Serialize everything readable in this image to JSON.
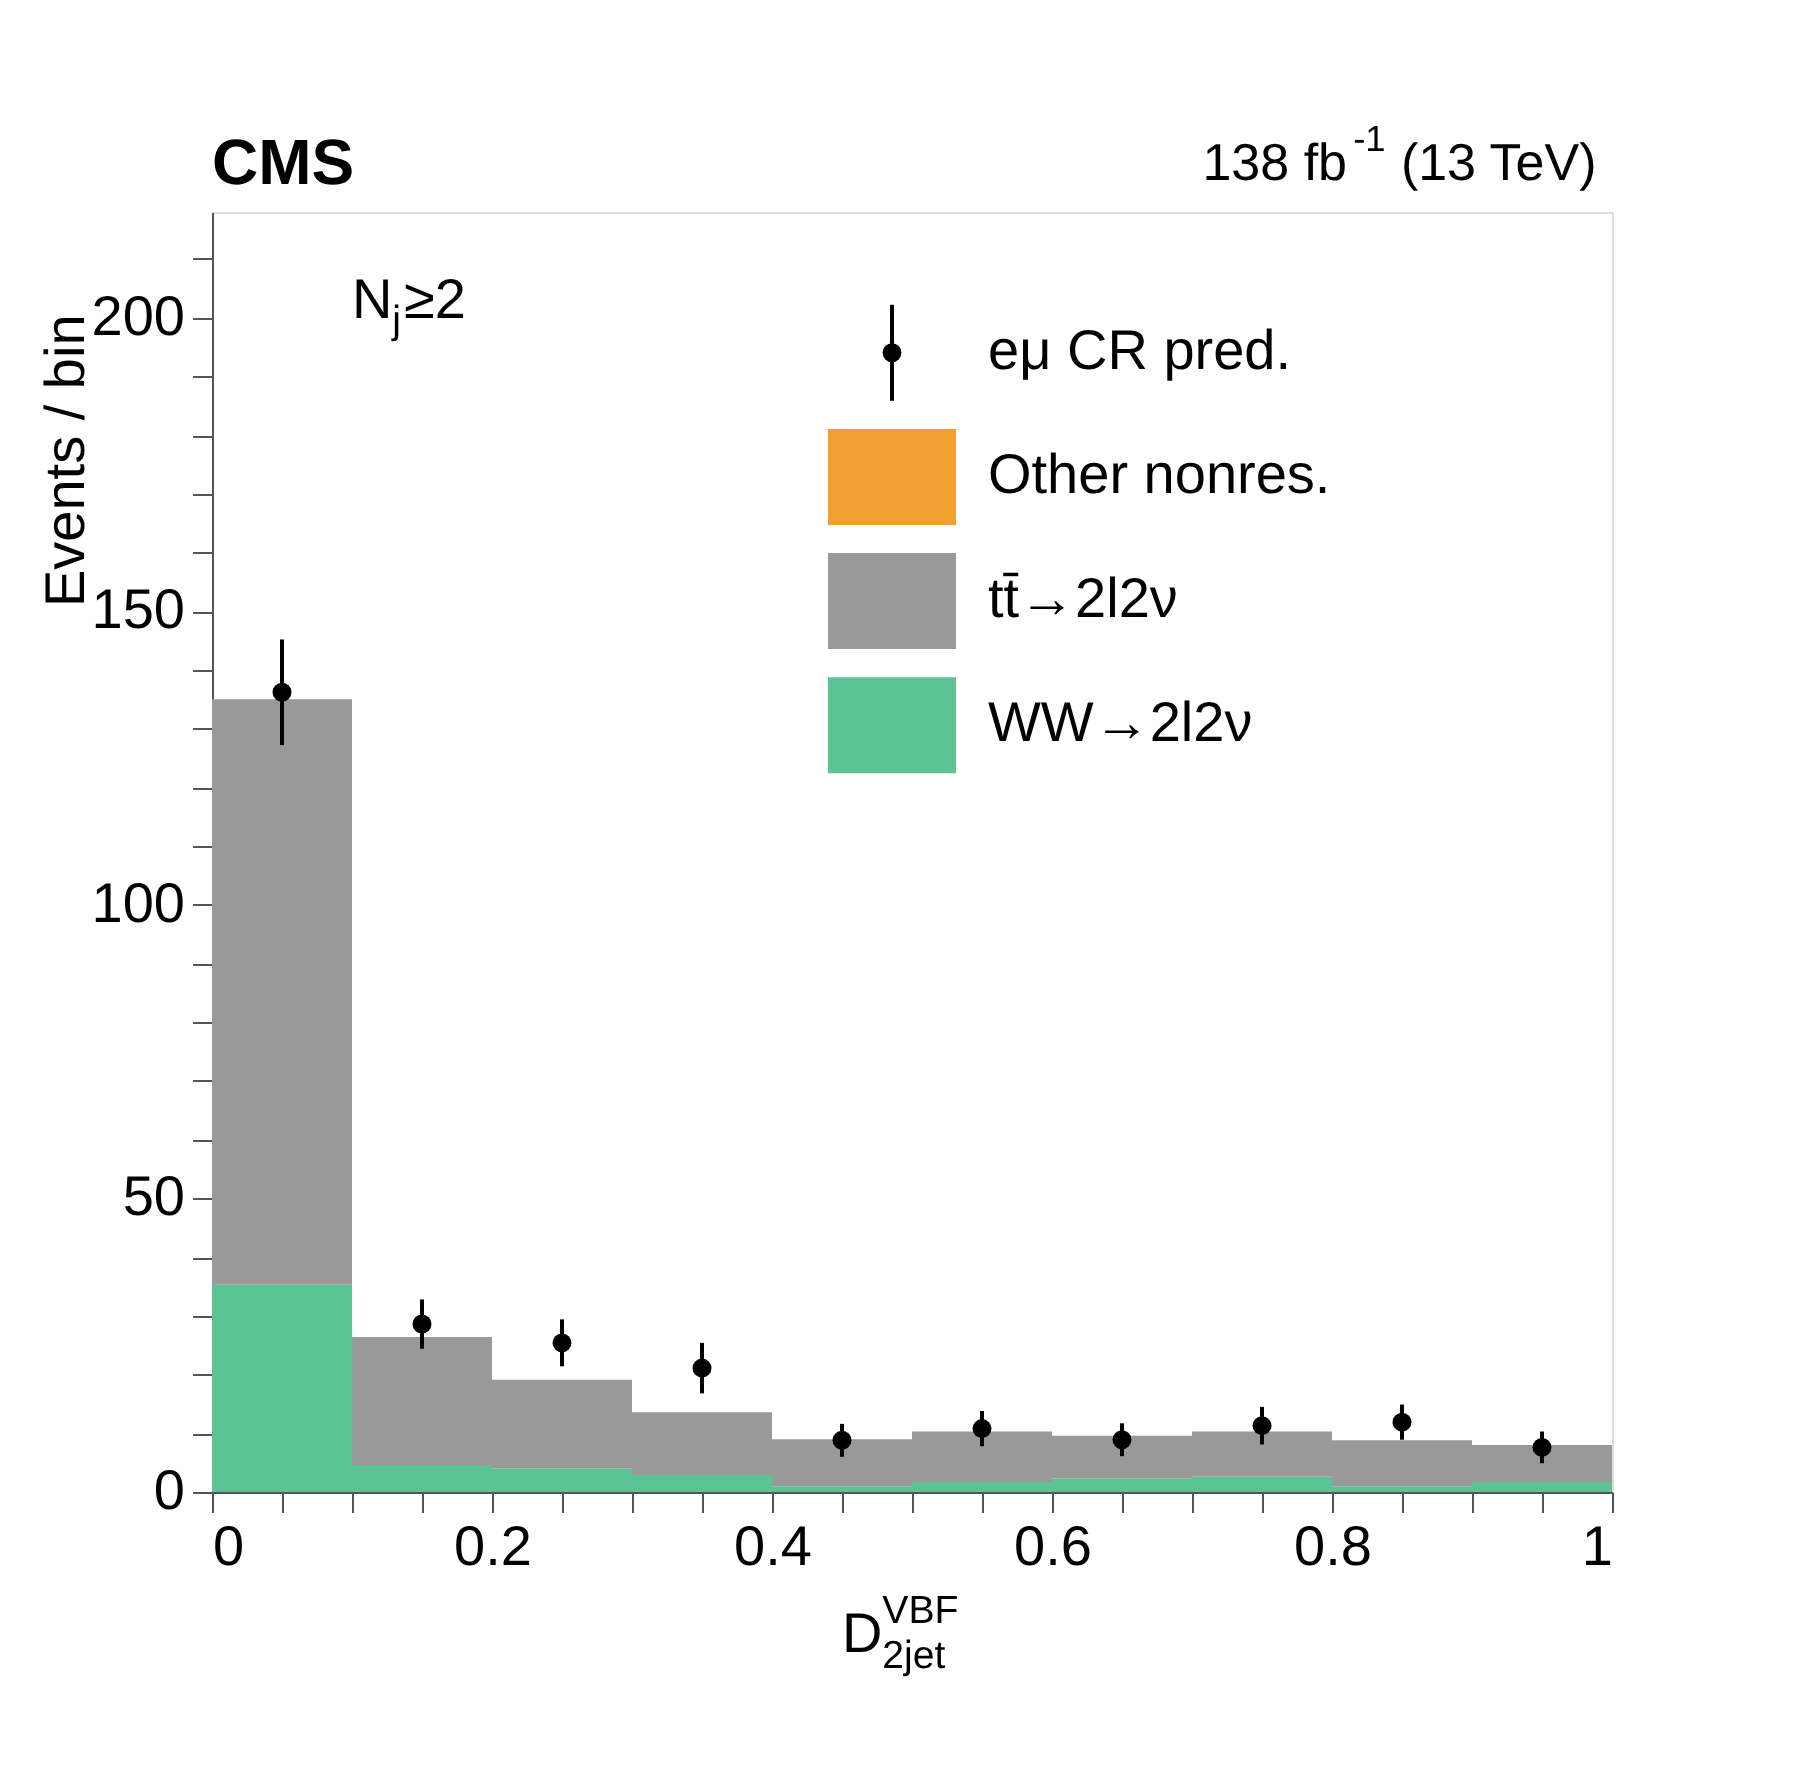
{
  "chart_data": {
    "type": "bar",
    "title": "CMS",
    "subtitle": "138 fb$^{-1}$ (13 TeV)",
    "xlabel": "D$^{VBF}$$_{2jet}$",
    "ylabel": "Events / bin",
    "annotations": [
      "N$_{j}$≥2"
    ],
    "x": [
      0.05,
      0.15,
      0.25,
      0.35,
      0.45,
      0.55,
      0.65,
      0.75,
      0.85,
      0.95
    ],
    "stacked": true,
    "series": [
      {
        "name": "WW→2l2ν",
        "color": "#5cc394",
        "values": [
          35.3,
          4.6,
          4.0,
          2.9,
          1.0,
          1.7,
          2.3,
          2.6,
          1.0,
          1.7
        ]
      },
      {
        "name": "tt̄→2l2ν",
        "color": "#999999",
        "values": [
          99.7,
          21.8,
          15.1,
          10.7,
          8.0,
          8.6,
          7.3,
          7.7,
          7.8,
          6.3
        ]
      },
      {
        "name": "Other nonres.",
        "color": "#f0a030",
        "values": [
          0,
          0,
          0,
          0,
          0,
          0,
          0,
          0,
          0,
          0
        ]
      },
      {
        "name": "eμ CR pred.",
        "type": "scatter",
        "color": "#000000",
        "x": [
          0.05,
          0.15,
          0.25,
          0.35,
          0.45,
          0.55,
          0.65,
          0.75,
          0.85,
          0.95
        ],
        "values": [
          136.2,
          28.6,
          25.4,
          21.1,
          8.8,
          10.8,
          8.9,
          11.3,
          11.9,
          7.6
        ],
        "errors": [
          9,
          4.2,
          4,
          4.3,
          2.8,
          3,
          2.8,
          3.2,
          3,
          2.7
        ]
      }
    ],
    "xlim": [
      0,
      1
    ],
    "xticks": [
      0,
      {
        "value": 0.05,
        "label": null
      },
      {
        "value": 0.1,
        "label": null
      },
      {
        "value": 0.15,
        "label": null
      },
      0.2,
      {
        "value": 0.25,
        "label": null
      },
      {
        "value": 0.3,
        "label": null
      },
      {
        "value": 0.35,
        "label": null
      },
      0.4,
      {
        "value": 0.45,
        "label": null
      },
      {
        "value": 0.5,
        "label": null
      },
      {
        "value": 0.55,
        "label": null
      },
      0.6,
      {
        "value": 0.65,
        "label": null
      },
      {
        "value": 0.7,
        "label": null
      },
      {
        "value": 0.75,
        "label": null
      },
      0.8,
      {
        "value": 0.85,
        "label": null
      },
      {
        "value": 0.9,
        "label": null
      },
      {
        "value": 0.95,
        "label": null
      },
      1
    ],
    "ylim": [
      0,
      218
    ],
    "yticks": [
      0,
      {
        "value": 10,
        "label": null
      },
      {
        "value": 20,
        "label": null
      },
      {
        "value": 30,
        "label": null
      },
      {
        "value": 40,
        "label": null
      },
      50,
      {
        "value": 60,
        "label": null
      },
      {
        "value": 70,
        "label": null
      },
      {
        "value": 80,
        "label": null
      },
      {
        "value": 90,
        "label": null
      },
      100,
      {
        "value": 110,
        "label": null
      },
      {
        "value": 120,
        "label": null
      },
      {
        "value": 130,
        "label": null
      },
      {
        "value": 140,
        "label": null
      },
      150,
      {
        "value": 160,
        "label": null
      },
      {
        "value": 170,
        "label": null
      },
      {
        "value": 180,
        "label": null
      },
      {
        "value": 190,
        "label": null
      },
      200,
      {
        "value": 210,
        "label": null
      }
    ],
    "marker": "circle",
    "legend": "top right",
    "grid": false
  }
}
